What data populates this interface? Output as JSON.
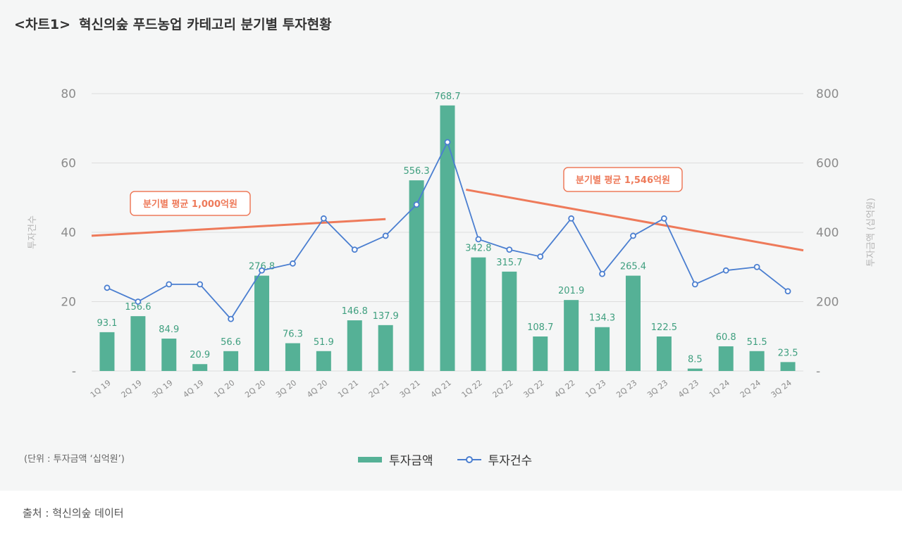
{
  "header": {
    "tag": "<차트1>",
    "title": "혁신의숲 푸드농업 카테고리 분기별 투자현황"
  },
  "unit_note": "(단위 : 투자금액 ‘십억원’)",
  "source": "출처 : 혁신의숲 데이터",
  "colors": {
    "bar": "#55b196",
    "line": "#4a7ed0",
    "trend": "#ee7a5a",
    "bar_label": "#3f9f7f",
    "axis_text": "#8c8c8c",
    "grid": "#dddddd"
  },
  "chart_data": {
    "type": "bar",
    "title": "혁신의숲 푸드농업 카테고리 분기별 투자현황",
    "categories": [
      "1Q 19",
      "2Q 19",
      "3Q 19",
      "4Q 19",
      "1Q 20",
      "2Q 20",
      "3Q 20",
      "4Q 20",
      "1Q 21",
      "2Q 21",
      "3Q 21",
      "4Q 21",
      "1Q 22",
      "2Q 22",
      "3Q 22",
      "4Q 22",
      "1Q 23",
      "2Q 23",
      "3Q 23",
      "4Q 23",
      "1Q 24",
      "2Q 24",
      "3Q 24"
    ],
    "series": [
      {
        "name": "투자금액",
        "type": "bar",
        "axis": "right",
        "values": [
          93.1,
          156.6,
          84.9,
          20.9,
          56.6,
          276.8,
          76.3,
          51.9,
          146.8,
          137.9,
          556.3,
          768.7,
          342.8,
          315.7,
          108.7,
          201.9,
          134.3,
          265.4,
          122.5,
          8.5,
          60.8,
          51.5,
          23.5
        ]
      },
      {
        "name": "투자건수",
        "type": "line",
        "axis": "left",
        "values": [
          24,
          20,
          25,
          25,
          15,
          29,
          31,
          44,
          35,
          39,
          48,
          66,
          38,
          35,
          33,
          44,
          28,
          39,
          44,
          25,
          29,
          30,
          23
        ]
      }
    ],
    "bar_heights": [
      111.9,
      158.1,
      93.4,
      19.8,
      57.2,
      274.9,
      80.1,
      57.3,
      146.1,
      132.3,
      549.9,
      765.9,
      327.6,
      286.6,
      99.5,
      204.7,
      126.4,
      274.9,
      99.5,
      6.9,
      71.1,
      57.3,
      25.7
    ],
    "left_axis": {
      "label": "투자건수",
      "ylim": [
        0,
        80
      ],
      "ticks": [
        "-",
        "20",
        "40",
        "60",
        "80"
      ]
    },
    "right_axis": {
      "label": "투자금액 (십억원)",
      "ylim": [
        0,
        800
      ],
      "ticks": [
        "-",
        "200",
        "400",
        "600",
        "800"
      ]
    },
    "trend_lines": [
      {
        "label": "분기별 평균 1,000억원",
        "from": [
          -0.5,
          390
        ],
        "to": [
          9,
          438
        ]
      },
      {
        "label": "분기별 평균 1,546억원",
        "from": [
          11.6,
          523
        ],
        "to": [
          22.5,
          348
        ]
      }
    ],
    "legend_position": "bottom-center",
    "grid": true
  }
}
